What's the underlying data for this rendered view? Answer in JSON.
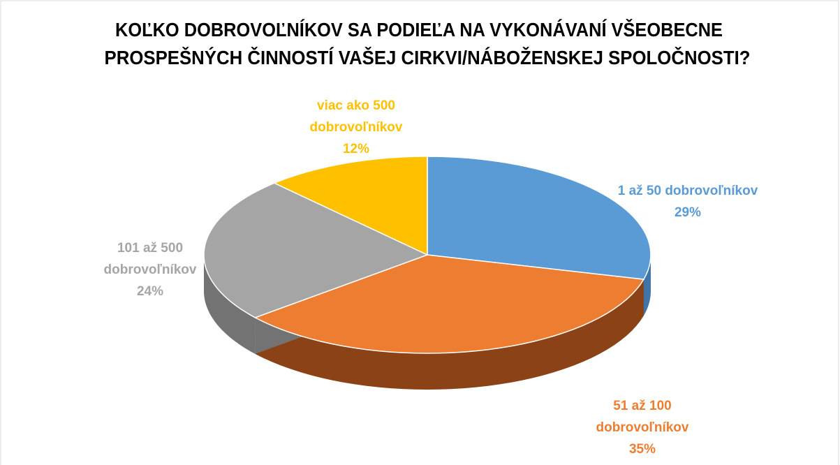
{
  "chart_data": {
    "type": "pie",
    "title": [
      "KOĽKO DOBROVOĽNÍKOV SA PODIEĽA NA VYKONÁVANÍ VŠEOBECNE",
      "PROSPEŠNÝCH ČINNOSTÍ VAŠEJ CIRKVI/NÁBOŽENSKEJ SPOLOČNOSTI?"
    ],
    "categories": [
      "1 až 50 dobrovoľníkov",
      "51 až 100 dobrovoľníkov",
      "101 až 500 dobrovoľníkov",
      "viac ako 500 dobrovoľníkov"
    ],
    "values": [
      29,
      35,
      24,
      12
    ],
    "value_labels": [
      "29%",
      "35%",
      "24%",
      "12%"
    ],
    "colors": [
      "#5b9bd5",
      "#ed7d31",
      "#a5a5a5",
      "#ffc000"
    ],
    "side_colors": [
      "#3f75a8",
      "#8a4216",
      "#737373",
      "#b38600"
    ]
  }
}
